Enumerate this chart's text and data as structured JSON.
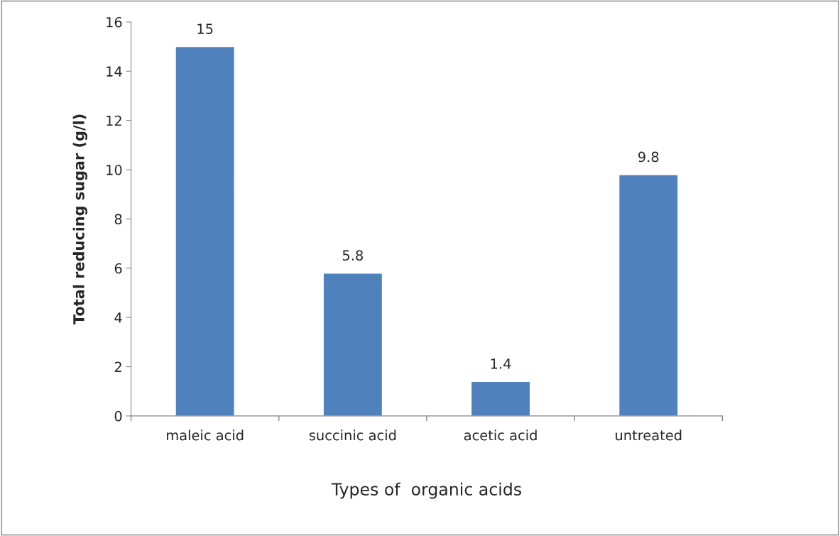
{
  "chart_data": {
    "type": "bar",
    "xlabel": "Types of  organic acids",
    "ylabel": "Total reducing sugar (g/l)",
    "categories": [
      "maleic acid",
      "succinic acid",
      "acetic acid",
      "untreated"
    ],
    "values": [
      15,
      5.8,
      1.4,
      9.8
    ],
    "color": "#4f81bd",
    "ylim": [
      0,
      16
    ],
    "yticks": [
      0,
      2,
      4,
      6,
      8,
      10,
      12,
      14,
      16
    ],
    "grid": false,
    "legend": false,
    "data_labels": true
  }
}
